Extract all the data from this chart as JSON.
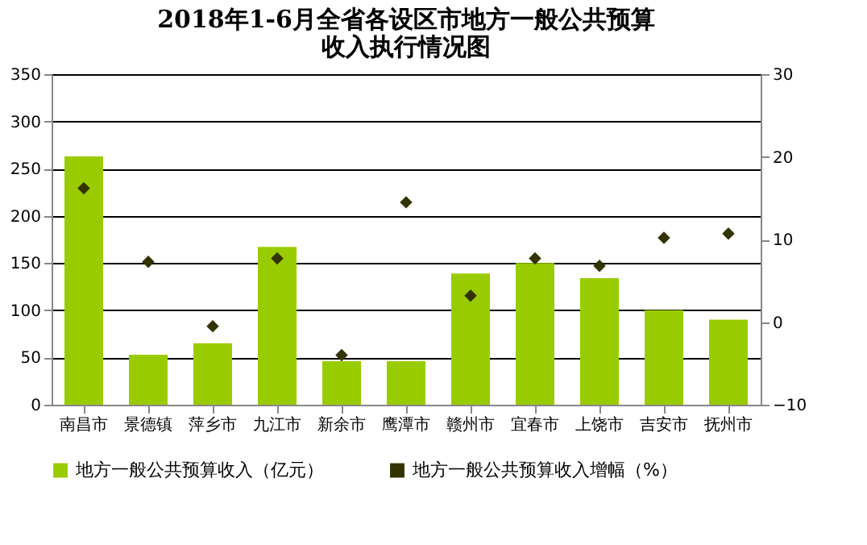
{
  "chart_data": {
    "type": "bar",
    "title": [
      "2018年1-6月全省各设区市地方一般公共预算",
      "收入执行情况图"
    ],
    "categories": [
      "南昌市",
      "景德镇",
      "萍乡市",
      "九江市",
      "新余市",
      "鹰潭市",
      "赣州市",
      "宜春市",
      "上饶市",
      "吉安市",
      "抚州市"
    ],
    "series": [
      {
        "name": "地方一般公共预算收入（亿元）",
        "color": "#99cc00",
        "values": [
          263,
          53,
          65,
          167,
          46,
          46,
          139,
          150,
          134,
          100,
          90
        ]
      },
      {
        "name": "地方一般公共预算收入增幅（%）",
        "type": "scatter",
        "axis": "y2",
        "marker": "diamond",
        "color": "#333300",
        "values": [
          16.2,
          7.3,
          -0.5,
          7.7,
          -4.0,
          14.5,
          3.2,
          7.7,
          6.8,
          10.2,
          10.7
        ]
      }
    ],
    "ylim": [
      0,
      350
    ],
    "yticks": [
      0,
      50,
      100,
      150,
      200,
      250,
      300,
      350
    ],
    "y2lim": [
      -10,
      30
    ],
    "y2ticks": [
      -10,
      0,
      10,
      20,
      30
    ],
    "grid": "y",
    "legend": "bottom"
  }
}
